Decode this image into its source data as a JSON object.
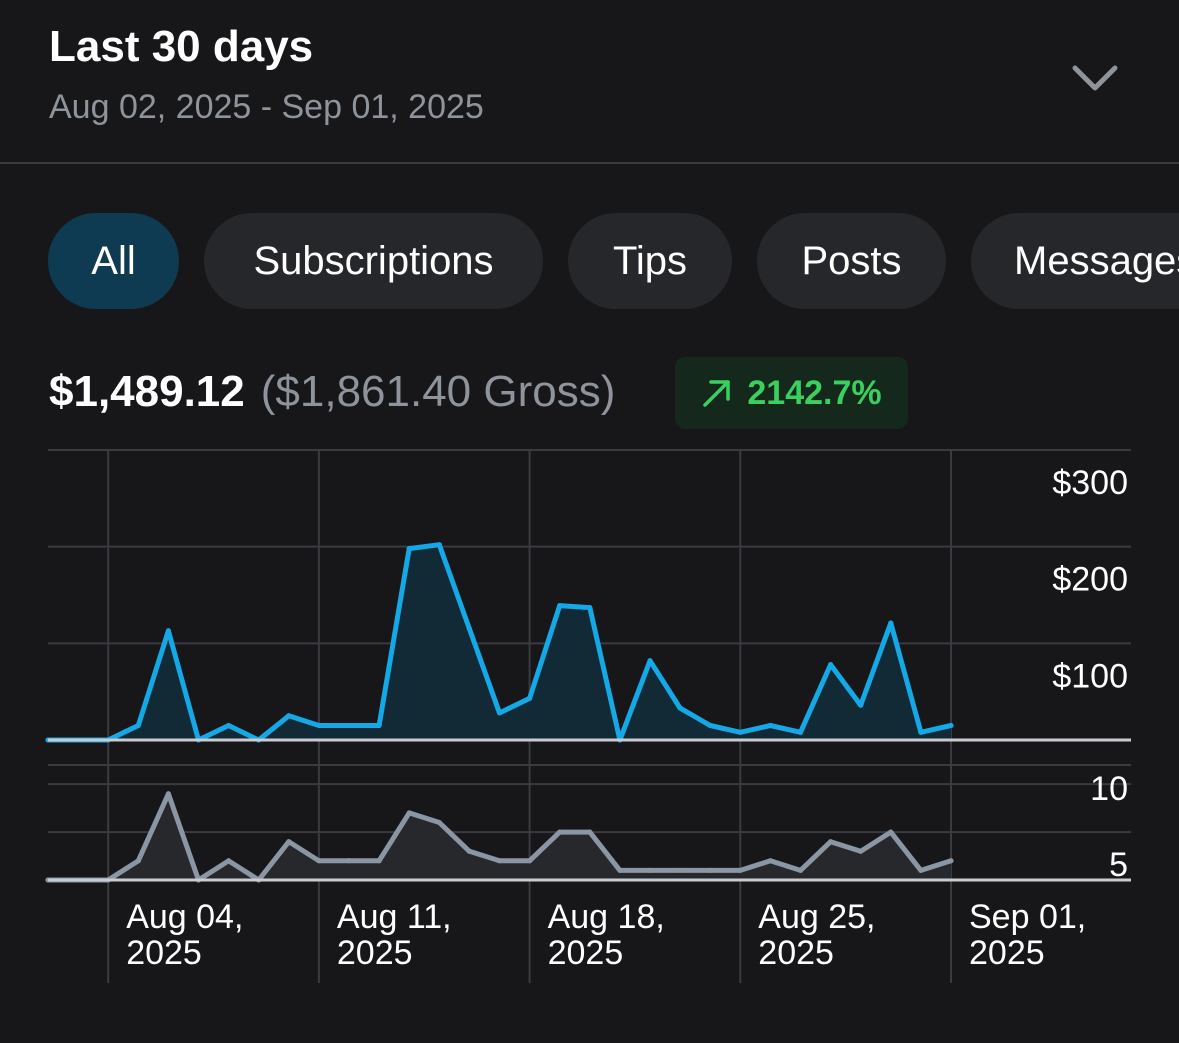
{
  "header": {
    "title": "Last 30 days",
    "date_range": "Aug 02, 2025 - Sep 01, 2025",
    "dropdown_icon": "chevron-down-icon"
  },
  "filters": {
    "tabs": [
      {
        "label": "All",
        "active": true
      },
      {
        "label": "Subscriptions",
        "active": false
      },
      {
        "label": "Tips",
        "active": false
      },
      {
        "label": "Posts",
        "active": false
      },
      {
        "label": "Messages",
        "active": false
      }
    ]
  },
  "summary": {
    "net": "$1,489.12",
    "gross": "($1,861.40 Gross)",
    "change": "2142.7%",
    "change_icon": "arrow-up-right-icon"
  },
  "colors": {
    "background": "#17171a",
    "accent": "#14a8e6",
    "secondary_series": "#8a96a3",
    "positive": "#3ad05f",
    "pill_active": "#0e3a52",
    "pill": "#26272b"
  },
  "chart_data": [
    {
      "type": "area",
      "x_labels": [
        "Aug 04, 2025",
        "Aug 11, 2025",
        "Aug 18, 2025",
        "Aug 25, 2025",
        "Sep 01, 2025"
      ],
      "y_tick_labels": [
        "$300",
        "$200",
        "$100"
      ],
      "y_ticks": [
        300,
        200,
        100
      ],
      "ylim": [
        0,
        300
      ],
      "x": [
        "2025-08-02",
        "2025-08-03",
        "2025-08-04",
        "2025-08-05",
        "2025-08-06",
        "2025-08-07",
        "2025-08-08",
        "2025-08-09",
        "2025-08-10",
        "2025-08-11",
        "2025-08-12",
        "2025-08-13",
        "2025-08-14",
        "2025-08-15",
        "2025-08-16",
        "2025-08-17",
        "2025-08-18",
        "2025-08-19",
        "2025-08-20",
        "2025-08-21",
        "2025-08-22",
        "2025-08-23",
        "2025-08-24",
        "2025-08-25",
        "2025-08-26",
        "2025-08-27",
        "2025-08-28",
        "2025-08-29",
        "2025-08-30",
        "2025-08-31",
        "2025-09-01"
      ],
      "grid": true,
      "series": [
        {
          "values": [
            0,
            0,
            0,
            15,
            113,
            0,
            15,
            0,
            25,
            15,
            15,
            15,
            198,
            202,
            115,
            28,
            43,
            139,
            137,
            0,
            82,
            33,
            15,
            8,
            15,
            8,
            78,
            36,
            121,
            8,
            15
          ]
        }
      ]
    },
    {
      "type": "area",
      "y_tick_labels": [
        "10",
        "5"
      ],
      "y_ticks": [
        10,
        5
      ],
      "ylim": [
        0,
        10
      ],
      "x": [
        "2025-08-02",
        "2025-08-03",
        "2025-08-04",
        "2025-08-05",
        "2025-08-06",
        "2025-08-07",
        "2025-08-08",
        "2025-08-09",
        "2025-08-10",
        "2025-08-11",
        "2025-08-12",
        "2025-08-13",
        "2025-08-14",
        "2025-08-15",
        "2025-08-16",
        "2025-08-17",
        "2025-08-18",
        "2025-08-19",
        "2025-08-20",
        "2025-08-21",
        "2025-08-22",
        "2025-08-23",
        "2025-08-24",
        "2025-08-25",
        "2025-08-26",
        "2025-08-27",
        "2025-08-28",
        "2025-08-29",
        "2025-08-30",
        "2025-08-31",
        "2025-09-01"
      ],
      "grid": true,
      "series": [
        {
          "values": [
            0,
            0,
            0,
            2,
            9,
            0,
            2,
            0,
            4,
            2,
            2,
            2,
            7,
            6,
            3,
            2,
            2,
            5,
            5,
            1,
            1,
            1,
            1,
            1,
            2,
            1,
            4,
            3,
            5,
            1,
            2
          ]
        }
      ]
    }
  ]
}
